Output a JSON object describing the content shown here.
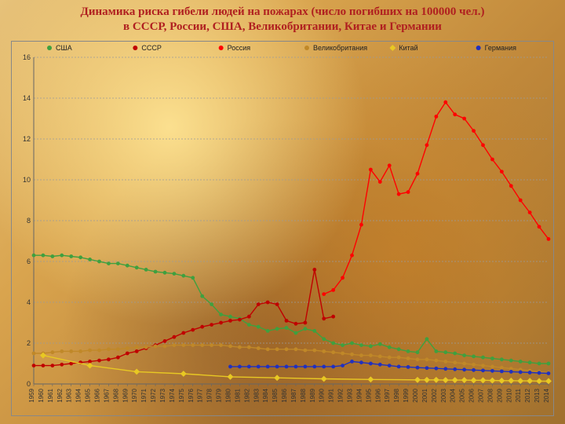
{
  "title_line1": "Динамика  риска гибели людей на пожарах (число погибших на 100000 чел.)",
  "title_line2": "в СССР, России,  США, Великобритании, Китае и Германии",
  "chart": {
    "type": "line",
    "background_color": "transparent",
    "plot_border_color": "#888888",
    "grid_color": "#9a9a9a",
    "grid_dash": "2,2",
    "axis_line_color": "#666666",
    "xlim": [
      1959,
      2014
    ],
    "ylim": [
      0,
      16
    ],
    "ytick_step": 2,
    "yticks": [
      0,
      2,
      4,
      6,
      8,
      10,
      12,
      14,
      16
    ],
    "ytick_fontsize": 9,
    "xtick_fontsize": 8,
    "xtick_rotation": -90,
    "years": [
      1959,
      1960,
      1961,
      1962,
      1963,
      1964,
      1965,
      1966,
      1967,
      1968,
      1969,
      1970,
      1971,
      1972,
      1973,
      1974,
      1975,
      1976,
      1977,
      1978,
      1979,
      1980,
      1981,
      1982,
      1983,
      1984,
      1985,
      1986,
      1987,
      1988,
      1989,
      1990,
      1991,
      1992,
      1993,
      1994,
      1995,
      1996,
      1997,
      1998,
      1999,
      2000,
      2001,
      2002,
      2003,
      2004,
      2005,
      2006,
      2007,
      2008,
      2009,
      2010,
      2011,
      2012,
      2013,
      2014
    ],
    "line_width": 1.4,
    "marker_radius": 2.4,
    "legend": {
      "y": 8,
      "marker_radius": 3,
      "fontsize": 9,
      "items": [
        "США",
        "СССР",
        "Россия",
        "Великобритания",
        "Китай",
        "Германия"
      ],
      "colors": [
        "#3fa03f",
        "#c00000",
        "#ff0000",
        "#c08828",
        "#e8c823",
        "#2030c0"
      ]
    },
    "series": [
      {
        "name": "США",
        "color": "#3fa03f",
        "marker": "circle",
        "data": {
          "1959": 6.3,
          "1960": 6.3,
          "1961": 6.25,
          "1962": 6.3,
          "1963": 6.25,
          "1964": 6.2,
          "1965": 6.1,
          "1966": 6.0,
          "1967": 5.9,
          "1968": 5.9,
          "1969": 5.8,
          "1970": 5.7,
          "1971": 5.6,
          "1972": 5.5,
          "1973": 5.45,
          "1974": 5.4,
          "1975": 5.3,
          "1976": 5.2,
          "1977": 4.3,
          "1978": 3.9,
          "1979": 3.4,
          "1980": 3.3,
          "1981": 3.2,
          "1982": 2.9,
          "1983": 2.8,
          "1984": 2.6,
          "1985": 2.7,
          "1986": 2.75,
          "1987": 2.5,
          "1988": 2.7,
          "1989": 2.6,
          "1990": 2.2,
          "1991": 2.0,
          "1992": 1.9,
          "1993": 2.0,
          "1994": 1.9,
          "1995": 1.85,
          "1996": 1.95,
          "1997": 1.8,
          "1998": 1.7,
          "1999": 1.6,
          "2000": 1.55,
          "2001": 2.2,
          "2002": 1.6,
          "2003": 1.55,
          "2004": 1.5,
          "2005": 1.4,
          "2006": 1.35,
          "2007": 1.3,
          "2008": 1.25,
          "2009": 1.2,
          "2010": 1.15,
          "2011": 1.1,
          "2012": 1.05,
          "2013": 1.0,
          "2014": 1.0
        }
      },
      {
        "name": "СССР",
        "color": "#c00000",
        "marker": "circle",
        "data": {
          "1959": 0.9,
          "1960": 0.9,
          "1961": 0.9,
          "1962": 0.95,
          "1963": 1.0,
          "1964": 1.05,
          "1965": 1.1,
          "1966": 1.15,
          "1967": 1.2,
          "1968": 1.3,
          "1969": 1.5,
          "1970": 1.6,
          "1971": 1.75,
          "1972": 1.9,
          "1973": 2.1,
          "1974": 2.3,
          "1975": 2.5,
          "1976": 2.65,
          "1977": 2.8,
          "1978": 2.9,
          "1979": 3.0,
          "1980": 3.1,
          "1981": 3.15,
          "1982": 3.3,
          "1983": 3.9,
          "1984": 4.0,
          "1985": 3.9,
          "1986": 3.1,
          "1987": 2.95,
          "1988": 3.0,
          "1989": 5.6,
          "1990": 3.2,
          "1991": 3.3
        }
      },
      {
        "name": "Россия",
        "color": "#ff0000",
        "marker": "circle",
        "data": {
          "1990": 4.4,
          "1991": 4.6,
          "1992": 5.2,
          "1993": 6.3,
          "1994": 7.8,
          "1995": 10.5,
          "1996": 9.9,
          "1997": 10.7,
          "1998": 9.3,
          "1999": 9.4,
          "2000": 10.3,
          "2001": 11.7,
          "2002": 13.1,
          "2003": 13.8,
          "2004": 13.2,
          "2005": 13.0,
          "2006": 12.4,
          "2007": 11.7,
          "2008": 11.0,
          "2009": 10.4,
          "2010": 9.7,
          "2011": 9.0,
          "2012": 8.4,
          "2013": 7.7,
          "2014": 7.1
        }
      },
      {
        "name": "Великобритания",
        "color": "#c08828",
        "marker": "circle",
        "data": {
          "1959": 1.5,
          "1960": 1.5,
          "1961": 1.55,
          "1962": 1.6,
          "1963": 1.6,
          "1964": 1.6,
          "1965": 1.65,
          "1966": 1.65,
          "1967": 1.7,
          "1968": 1.7,
          "1969": 1.75,
          "1970": 1.8,
          "1971": 1.8,
          "1972": 1.85,
          "1973": 1.85,
          "1974": 1.9,
          "1975": 1.9,
          "1976": 1.9,
          "1977": 1.9,
          "1978": 1.9,
          "1979": 1.9,
          "1980": 1.85,
          "1981": 1.8,
          "1982": 1.8,
          "1983": 1.75,
          "1984": 1.7,
          "1985": 1.7,
          "1986": 1.7,
          "1987": 1.7,
          "1988": 1.65,
          "1989": 1.65,
          "1990": 1.6,
          "1991": 1.55,
          "1992": 1.5,
          "1993": 1.45,
          "1994": 1.4,
          "1995": 1.4,
          "1996": 1.35,
          "1997": 1.3,
          "1998": 1.3,
          "1999": 1.25,
          "2000": 1.2,
          "2001": 1.2,
          "2002": 1.15,
          "2003": 1.1,
          "2004": 1.05,
          "2005": 1.0,
          "2006": 0.95,
          "2007": 0.9,
          "2008": 0.85,
          "2009": 0.8,
          "2010": 0.75,
          "2011": 0.7,
          "2012": 0.65,
          "2013": 0.6,
          "2014": 0.55
        }
      },
      {
        "name": "Китай",
        "color": "#e8c823",
        "marker": "diamond",
        "data": {
          "1960": 1.4,
          "1965": 0.9,
          "1970": 0.6,
          "1975": 0.5,
          "1980": 0.35,
          "1985": 0.3,
          "1990": 0.25,
          "1995": 0.22,
          "2000": 0.2,
          "2001": 0.2,
          "2002": 0.2,
          "2003": 0.19,
          "2004": 0.19,
          "2005": 0.19,
          "2006": 0.18,
          "2007": 0.18,
          "2008": 0.17,
          "2009": 0.16,
          "2010": 0.16,
          "2011": 0.15,
          "2012": 0.15,
          "2013": 0.14,
          "2014": 0.14
        }
      },
      {
        "name": "Германия",
        "color": "#2030c0",
        "marker": "circle",
        "data": {
          "1980": 0.85,
          "1981": 0.85,
          "1982": 0.85,
          "1983": 0.85,
          "1984": 0.85,
          "1985": 0.85,
          "1986": 0.85,
          "1987": 0.85,
          "1988": 0.85,
          "1989": 0.85,
          "1990": 0.85,
          "1991": 0.85,
          "1992": 0.9,
          "1993": 1.1,
          "1994": 1.05,
          "1995": 1.0,
          "1996": 0.95,
          "1997": 0.9,
          "1998": 0.85,
          "1999": 0.83,
          "2000": 0.8,
          "2001": 0.78,
          "2002": 0.76,
          "2003": 0.74,
          "2004": 0.72,
          "2005": 0.7,
          "2006": 0.68,
          "2007": 0.66,
          "2008": 0.64,
          "2009": 0.62,
          "2010": 0.6,
          "2011": 0.58,
          "2012": 0.56,
          "2013": 0.54,
          "2014": 0.52
        }
      }
    ]
  }
}
